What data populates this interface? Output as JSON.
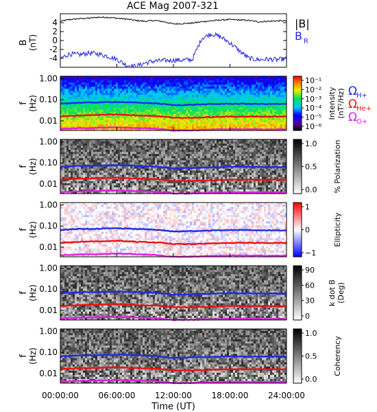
{
  "title": "ACE Mag 2007-321",
  "colors": {
    "black": "#000000",
    "br": "#2222e0",
    "oh": "#1f2be8",
    "ohe": "#ee1111",
    "oo": "#e020e0"
  },
  "panel1": {
    "ylabel_top": "B",
    "ylabel_bottom": "(nT)",
    "legend_b": "|B|",
    "legend_br": "B",
    "legend_br_sub": "R"
  },
  "freq_ylabel": {
    "top": "f",
    "bottom": "(Hz)"
  },
  "freq_ticks": [
    "1.00",
    "0.10",
    "0.01"
  ],
  "legend_omega": {
    "symbol": "Ω",
    "h": "H+",
    "he": "He+",
    "o": "O+"
  },
  "colorbars": [
    {
      "title": "Intensity",
      "unit": "(nT²/Hz)",
      "ticks": [
        "10⁻¹",
        "10⁻²",
        "10⁻³",
        "10⁻⁴",
        "10⁻⁵",
        "10⁻⁶"
      ]
    },
    {
      "title": "% Polarization",
      "ticks": [
        "1.0",
        "0.5",
        "0.0"
      ]
    },
    {
      "title": "Ellipticity",
      "ticks": [
        "1",
        "0",
        "−1"
      ]
    },
    {
      "title": "k dot B",
      "unit": "(Deg)",
      "ticks": [
        "90",
        "60",
        "30",
        "0"
      ]
    },
    {
      "title": "Coherency",
      "ticks": [
        "1.0",
        "0.5",
        "0.0"
      ]
    }
  ],
  "x_ticks": [
    "00:00:00",
    "06:00:00",
    "12:00:00",
    "18:00:00",
    "24:00:00"
  ],
  "xlabel": "Time (UT)",
  "chart_data": {
    "type": "line",
    "panels": [
      {
        "id": "magnetic-field",
        "ylabel": "B (nT)",
        "ylim": [
          -6,
          6
        ],
        "y_ticks": [
          4,
          2,
          0,
          -2,
          -4
        ],
        "x": [
          0,
          1,
          2,
          3,
          4,
          5,
          6,
          7,
          8,
          9,
          10,
          11,
          12,
          13,
          14,
          15,
          16,
          17,
          18,
          19,
          20,
          21,
          22,
          23,
          24
        ],
        "series": [
          {
            "name": "|B|",
            "values": [
              4.3,
              4.7,
              4.9,
              5.0,
              5.2,
              5.2,
              5.0,
              4.8,
              4.5,
              4.3,
              4.5,
              4.2,
              3.7,
              3.8,
              3.9,
              4.2,
              4.4,
              4.6,
              4.7,
              4.6,
              4.5,
              4.2,
              4.3,
              4.4,
              4.4
            ]
          },
          {
            "name": "B_R",
            "values": [
              -4.0,
              -3.0,
              -3.2,
              -2.8,
              -3.0,
              -3.5,
              -4.2,
              -5.5,
              -5.8,
              -5.0,
              -4.6,
              -4.5,
              -4.4,
              -4.4,
              -4.3,
              0.5,
              1.5,
              0.8,
              -0.5,
              -2.3,
              -4.0,
              -4.3,
              -4.2,
              -4.3,
              -4.1
            ]
          }
        ]
      },
      {
        "id": "gyrofrequency-lines",
        "ylabel": "f (Hz)",
        "y_scale": "log",
        "ylim": [
          0.0035,
          1.3
        ],
        "x": [
          0,
          2,
          4,
          6,
          8,
          10,
          11,
          12,
          14,
          16,
          18,
          20,
          22,
          24
        ],
        "series": [
          {
            "name": "ΩH+",
            "values": [
              0.066,
              0.072,
              0.075,
              0.079,
              0.073,
              0.068,
              0.062,
              0.055,
              0.058,
              0.062,
              0.065,
              0.064,
              0.063,
              0.063
            ]
          },
          {
            "name": "ΩHe+",
            "values": [
              0.016,
              0.018,
              0.019,
              0.02,
              0.018,
              0.017,
              0.016,
              0.014,
              0.014,
              0.015,
              0.016,
              0.016,
              0.016,
              0.016
            ]
          },
          {
            "name": "ΩO+",
            "values": [
              0.0041,
              0.0045,
              0.0047,
              0.005,
              0.0046,
              0.0043,
              0.0039,
              0.0035,
              0.0036,
              0.0038,
              0.004,
              0.004,
              0.0039,
              0.0039
            ]
          }
        ]
      }
    ],
    "xlim": [
      0,
      24
    ],
    "x_tick_values": [
      0,
      6,
      12,
      18,
      24
    ]
  }
}
